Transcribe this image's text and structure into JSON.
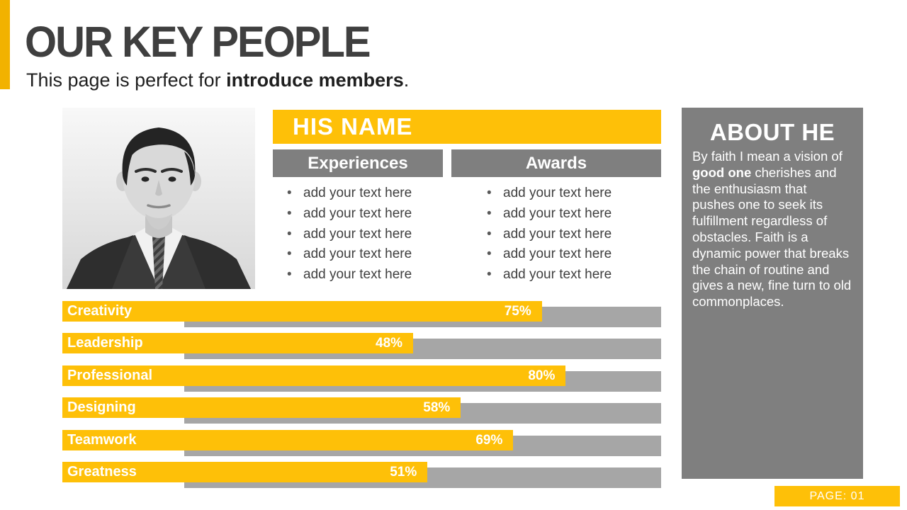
{
  "slide": {
    "title": "OUR KEY PEOPLE",
    "subtitle_prefix": "This page is perfect for ",
    "subtitle_bold": "introduce members",
    "subtitle_suffix": "."
  },
  "profile": {
    "name": "HIS NAME",
    "photo": "grayscale-portrait-of-man-in-suit",
    "columns": [
      {
        "header": "Experiences",
        "items": [
          "add your text here",
          "add your text here",
          "add your text here",
          "add your text here",
          "add your text here"
        ]
      },
      {
        "header": "Awards",
        "items": [
          "add your text here",
          "add your text here",
          "add your text here",
          "add your text here",
          "add your text here"
        ]
      }
    ]
  },
  "about": {
    "title": "ABOUT HE",
    "body_prefix": "By faith I mean a vision of ",
    "body_bold": "good one",
    "body_suffix": " cherishes and the enthusiasm that pushes one to seek its fulfillment regardless of obstacles. Faith is a dynamic power that breaks the chain of routine and gives a new, fine turn to old commonplaces."
  },
  "skills": [
    {
      "label": "Creativity",
      "percent": 75,
      "percent_label": "75%"
    },
    {
      "label": "Leadership",
      "percent": 48,
      "percent_label": "48%"
    },
    {
      "label": "Professional",
      "percent": 80,
      "percent_label": "80%"
    },
    {
      "label": "Designing",
      "percent": 58,
      "percent_label": "58%"
    },
    {
      "label": "Teamwork",
      "percent": 69,
      "percent_label": "69%"
    },
    {
      "label": "Greatness",
      "percent": 51,
      "percent_label": "51%"
    }
  ],
  "footer": {
    "page_label": "PAGE: 01"
  },
  "colors": {
    "accent_yellow": "#FEC008",
    "accent_dark": "#F2B200",
    "panel_gray": "#7F7F7F",
    "track_gray": "#A6A6A6",
    "title_text": "#3F3F3F"
  },
  "chart_data": {
    "type": "bar",
    "orientation": "horizontal",
    "categories": [
      "Creativity",
      "Leadership",
      "Professional",
      "Designing",
      "Teamwork",
      "Greatness"
    ],
    "values": [
      75,
      48,
      80,
      58,
      69,
      51
    ],
    "value_labels": [
      "75%",
      "48%",
      "80%",
      "58%",
      "69%",
      "51%"
    ],
    "unit": "%",
    "xlim": [
      0,
      100
    ],
    "title": "",
    "xlabel": "",
    "ylabel": "",
    "grid": false,
    "legend": false,
    "bar_color": "#FEC008",
    "track_color": "#A6A6A6"
  }
}
